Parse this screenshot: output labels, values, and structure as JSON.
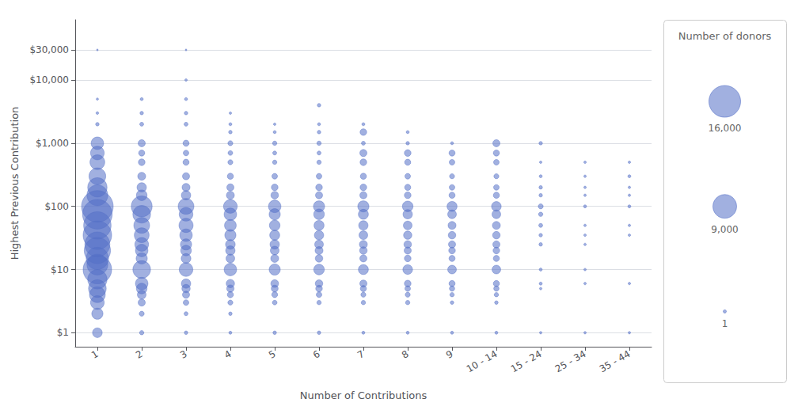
{
  "chart_data": {
    "type": "bubble",
    "xlabel": "Number of Contributions",
    "ylabel": "Highest Previous Contribution",
    "categories": [
      "1",
      "2",
      "3",
      "4",
      "5",
      "6",
      "7",
      "8",
      "9",
      "10 - 14",
      "15 - 24",
      "25 - 34",
      "35 - 44"
    ],
    "log": "y",
    "ylim": [
      0.6,
      90000
    ],
    "yticks": [
      {
        "value": 1,
        "label": "$1"
      },
      {
        "value": 10,
        "label": "$10"
      },
      {
        "value": 100,
        "label": "$100"
      },
      {
        "value": 1000,
        "label": "$1,000"
      },
      {
        "value": 10000,
        "label": "$10,000"
      },
      {
        "value": 30000,
        "label": "$30,000"
      }
    ],
    "grid": "y",
    "size_legend_title": "Number of donors",
    "size_legend": [
      {
        "value": 16000,
        "label": "16,000"
      },
      {
        "value": 9000,
        "label": "9,000"
      },
      {
        "value": 1,
        "label": "1"
      }
    ],
    "points": [
      {
        "x": "1",
        "y": 30000,
        "size": 50
      },
      {
        "x": "3",
        "y": 30000,
        "size": 50
      },
      {
        "x": "1",
        "y": 5000,
        "size": 80
      },
      {
        "x": "1",
        "y": 3000,
        "size": 120
      },
      {
        "x": "1",
        "y": 2000,
        "size": 200
      },
      {
        "x": "1",
        "y": 1000,
        "size": 2500
      },
      {
        "x": "1",
        "y": 700,
        "size": 3000
      },
      {
        "x": "1",
        "y": 500,
        "size": 3500
      },
      {
        "x": "1",
        "y": 300,
        "size": 4500
      },
      {
        "x": "1",
        "y": 200,
        "size": 6000
      },
      {
        "x": "1",
        "y": 150,
        "size": 7000
      },
      {
        "x": "1",
        "y": 100,
        "size": 16000
      },
      {
        "x": "1",
        "y": 75,
        "size": 14000
      },
      {
        "x": "1",
        "y": 50,
        "size": 12000
      },
      {
        "x": "1",
        "y": 35,
        "size": 13000
      },
      {
        "x": "1",
        "y": 25,
        "size": 10000
      },
      {
        "x": "1",
        "y": 20,
        "size": 11000
      },
      {
        "x": "1",
        "y": 15,
        "size": 8000
      },
      {
        "x": "1",
        "y": 12,
        "size": 7000
      },
      {
        "x": "1",
        "y": 10,
        "size": 13000
      },
      {
        "x": "1",
        "y": 7,
        "size": 6000
      },
      {
        "x": "1",
        "y": 5,
        "size": 5000
      },
      {
        "x": "1",
        "y": 4,
        "size": 4000
      },
      {
        "x": "1",
        "y": 3,
        "size": 3000
      },
      {
        "x": "1",
        "y": 2,
        "size": 2000
      },
      {
        "x": "1",
        "y": 1,
        "size": 1500
      },
      {
        "x": "2",
        "y": 5000,
        "size": 150
      },
      {
        "x": "2",
        "y": 3000,
        "size": 200
      },
      {
        "x": "2",
        "y": 2000,
        "size": 250
      },
      {
        "x": "2",
        "y": 1000,
        "size": 800
      },
      {
        "x": "2",
        "y": 700,
        "size": 600
      },
      {
        "x": "2",
        "y": 500,
        "size": 700
      },
      {
        "x": "2",
        "y": 300,
        "size": 1000
      },
      {
        "x": "2",
        "y": 200,
        "size": 1400
      },
      {
        "x": "2",
        "y": 150,
        "size": 1800
      },
      {
        "x": "2",
        "y": 100,
        "size": 7000
      },
      {
        "x": "2",
        "y": 75,
        "size": 5000
      },
      {
        "x": "2",
        "y": 50,
        "size": 4000
      },
      {
        "x": "2",
        "y": 35,
        "size": 3500
      },
      {
        "x": "2",
        "y": 25,
        "size": 3000
      },
      {
        "x": "2",
        "y": 20,
        "size": 2500
      },
      {
        "x": "2",
        "y": 15,
        "size": 2000
      },
      {
        "x": "2",
        "y": 10,
        "size": 5000
      },
      {
        "x": "2",
        "y": 6,
        "size": 2500
      },
      {
        "x": "2",
        "y": 5,
        "size": 1800
      },
      {
        "x": "2",
        "y": 4,
        "size": 1200
      },
      {
        "x": "2",
        "y": 3,
        "size": 800
      },
      {
        "x": "2",
        "y": 2,
        "size": 400
      },
      {
        "x": "2",
        "y": 1,
        "size": 300
      },
      {
        "x": "3",
        "y": 10000,
        "size": 100
      },
      {
        "x": "3",
        "y": 5000,
        "size": 150
      },
      {
        "x": "3",
        "y": 3000,
        "size": 200
      },
      {
        "x": "3",
        "y": 2000,
        "size": 250
      },
      {
        "x": "3",
        "y": 1000,
        "size": 600
      },
      {
        "x": "3",
        "y": 700,
        "size": 500
      },
      {
        "x": "3",
        "y": 500,
        "size": 600
      },
      {
        "x": "3",
        "y": 300,
        "size": 800
      },
      {
        "x": "3",
        "y": 200,
        "size": 1000
      },
      {
        "x": "3",
        "y": 150,
        "size": 1400
      },
      {
        "x": "3",
        "y": 100,
        "size": 4000
      },
      {
        "x": "3",
        "y": 75,
        "size": 3000
      },
      {
        "x": "3",
        "y": 50,
        "size": 3200
      },
      {
        "x": "3",
        "y": 35,
        "size": 2500
      },
      {
        "x": "3",
        "y": 25,
        "size": 2000
      },
      {
        "x": "3",
        "y": 20,
        "size": 1800
      },
      {
        "x": "3",
        "y": 15,
        "size": 1500
      },
      {
        "x": "3",
        "y": 10,
        "size": 3000
      },
      {
        "x": "3",
        "y": 6,
        "size": 1400
      },
      {
        "x": "3",
        "y": 5,
        "size": 1100
      },
      {
        "x": "3",
        "y": 4,
        "size": 800
      },
      {
        "x": "3",
        "y": 3,
        "size": 500
      },
      {
        "x": "3",
        "y": 2,
        "size": 250
      },
      {
        "x": "3",
        "y": 1,
        "size": 200
      },
      {
        "x": "4",
        "y": 3000,
        "size": 100
      },
      {
        "x": "4",
        "y": 2000,
        "size": 150
      },
      {
        "x": "4",
        "y": 1500,
        "size": 200
      },
      {
        "x": "4",
        "y": 1000,
        "size": 400
      },
      {
        "x": "4",
        "y": 700,
        "size": 350
      },
      {
        "x": "4",
        "y": 500,
        "size": 400
      },
      {
        "x": "4",
        "y": 300,
        "size": 600
      },
      {
        "x": "4",
        "y": 200,
        "size": 800
      },
      {
        "x": "4",
        "y": 150,
        "size": 1000
      },
      {
        "x": "4",
        "y": 100,
        "size": 3000
      },
      {
        "x": "4",
        "y": 75,
        "size": 2500
      },
      {
        "x": "4",
        "y": 50,
        "size": 2200
      },
      {
        "x": "4",
        "y": 35,
        "size": 2000
      },
      {
        "x": "4",
        "y": 25,
        "size": 1500
      },
      {
        "x": "4",
        "y": 20,
        "size": 1400
      },
      {
        "x": "4",
        "y": 15,
        "size": 1200
      },
      {
        "x": "4",
        "y": 10,
        "size": 2500
      },
      {
        "x": "4",
        "y": 6,
        "size": 1100
      },
      {
        "x": "4",
        "y": 5,
        "size": 850
      },
      {
        "x": "4",
        "y": 4,
        "size": 600
      },
      {
        "x": "4",
        "y": 3,
        "size": 400
      },
      {
        "x": "4",
        "y": 2,
        "size": 200
      },
      {
        "x": "4",
        "y": 1,
        "size": 150
      },
      {
        "x": "5",
        "y": 2000,
        "size": 100
      },
      {
        "x": "5",
        "y": 1500,
        "size": 150
      },
      {
        "x": "5",
        "y": 1000,
        "size": 300
      },
      {
        "x": "5",
        "y": 700,
        "size": 250
      },
      {
        "x": "5",
        "y": 500,
        "size": 300
      },
      {
        "x": "5",
        "y": 300,
        "size": 500
      },
      {
        "x": "5",
        "y": 200,
        "size": 700
      },
      {
        "x": "5",
        "y": 150,
        "size": 900
      },
      {
        "x": "5",
        "y": 100,
        "size": 2500
      },
      {
        "x": "5",
        "y": 75,
        "size": 2000
      },
      {
        "x": "5",
        "y": 50,
        "size": 1800
      },
      {
        "x": "5",
        "y": 35,
        "size": 1600
      },
      {
        "x": "5",
        "y": 25,
        "size": 1400
      },
      {
        "x": "5",
        "y": 20,
        "size": 1200
      },
      {
        "x": "5",
        "y": 15,
        "size": 1000
      },
      {
        "x": "5",
        "y": 10,
        "size": 2000
      },
      {
        "x": "5",
        "y": 6,
        "size": 950
      },
      {
        "x": "5",
        "y": 5,
        "size": 750
      },
      {
        "x": "5",
        "y": 4,
        "size": 550
      },
      {
        "x": "5",
        "y": 3,
        "size": 350
      },
      {
        "x": "5",
        "y": 1,
        "size": 200
      },
      {
        "x": "6",
        "y": 4000,
        "size": 200
      },
      {
        "x": "6",
        "y": 2000,
        "size": 150
      },
      {
        "x": "6",
        "y": 1500,
        "size": 200
      },
      {
        "x": "6",
        "y": 1000,
        "size": 300
      },
      {
        "x": "6",
        "y": 700,
        "size": 250
      },
      {
        "x": "6",
        "y": 500,
        "size": 300
      },
      {
        "x": "6",
        "y": 300,
        "size": 500
      },
      {
        "x": "6",
        "y": 200,
        "size": 700
      },
      {
        "x": "6",
        "y": 150,
        "size": 800
      },
      {
        "x": "6",
        "y": 100,
        "size": 2000
      },
      {
        "x": "6",
        "y": 75,
        "size": 1800
      },
      {
        "x": "6",
        "y": 50,
        "size": 1600
      },
      {
        "x": "6",
        "y": 35,
        "size": 1400
      },
      {
        "x": "6",
        "y": 25,
        "size": 1200
      },
      {
        "x": "6",
        "y": 20,
        "size": 1000
      },
      {
        "x": "6",
        "y": 15,
        "size": 900
      },
      {
        "x": "6",
        "y": 10,
        "size": 1800
      },
      {
        "x": "6",
        "y": 6,
        "size": 900
      },
      {
        "x": "6",
        "y": 5,
        "size": 700
      },
      {
        "x": "6",
        "y": 4,
        "size": 500
      },
      {
        "x": "6",
        "y": 3,
        "size": 300
      },
      {
        "x": "6",
        "y": 1,
        "size": 200
      },
      {
        "x": "7",
        "y": 2000,
        "size": 150
      },
      {
        "x": "7",
        "y": 1500,
        "size": 700
      },
      {
        "x": "7",
        "y": 1000,
        "size": 250
      },
      {
        "x": "7",
        "y": 700,
        "size": 800
      },
      {
        "x": "7",
        "y": 500,
        "size": 700
      },
      {
        "x": "7",
        "y": 300,
        "size": 600
      },
      {
        "x": "7",
        "y": 200,
        "size": 700
      },
      {
        "x": "7",
        "y": 150,
        "size": 800
      },
      {
        "x": "7",
        "y": 100,
        "size": 2000
      },
      {
        "x": "7",
        "y": 75,
        "size": 1600
      },
      {
        "x": "7",
        "y": 50,
        "size": 1400
      },
      {
        "x": "7",
        "y": 35,
        "size": 1200
      },
      {
        "x": "7",
        "y": 25,
        "size": 1000
      },
      {
        "x": "7",
        "y": 20,
        "size": 900
      },
      {
        "x": "7",
        "y": 15,
        "size": 800
      },
      {
        "x": "7",
        "y": 10,
        "size": 1600
      },
      {
        "x": "7",
        "y": 6,
        "size": 800
      },
      {
        "x": "7",
        "y": 5,
        "size": 600
      },
      {
        "x": "7",
        "y": 4,
        "size": 400
      },
      {
        "x": "7",
        "y": 3,
        "size": 300
      },
      {
        "x": "7",
        "y": 1,
        "size": 150
      },
      {
        "x": "8",
        "y": 1500,
        "size": 150
      },
      {
        "x": "8",
        "y": 1000,
        "size": 200
      },
      {
        "x": "8",
        "y": 700,
        "size": 700
      },
      {
        "x": "8",
        "y": 500,
        "size": 600
      },
      {
        "x": "8",
        "y": 300,
        "size": 500
      },
      {
        "x": "8",
        "y": 200,
        "size": 600
      },
      {
        "x": "8",
        "y": 150,
        "size": 700
      },
      {
        "x": "8",
        "y": 100,
        "size": 1800
      },
      {
        "x": "8",
        "y": 75,
        "size": 1400
      },
      {
        "x": "8",
        "y": 50,
        "size": 1200
      },
      {
        "x": "8",
        "y": 35,
        "size": 1100
      },
      {
        "x": "8",
        "y": 25,
        "size": 900
      },
      {
        "x": "8",
        "y": 20,
        "size": 800
      },
      {
        "x": "8",
        "y": 15,
        "size": 700
      },
      {
        "x": "8",
        "y": 10,
        "size": 1500
      },
      {
        "x": "8",
        "y": 6,
        "size": 700
      },
      {
        "x": "8",
        "y": 5,
        "size": 500
      },
      {
        "x": "8",
        "y": 4,
        "size": 400
      },
      {
        "x": "8",
        "y": 3,
        "size": 300
      },
      {
        "x": "8",
        "y": 1,
        "size": 150
      },
      {
        "x": "9",
        "y": 1000,
        "size": 150
      },
      {
        "x": "9",
        "y": 700,
        "size": 600
      },
      {
        "x": "9",
        "y": 500,
        "size": 500
      },
      {
        "x": "9",
        "y": 300,
        "size": 400
      },
      {
        "x": "9",
        "y": 200,
        "size": 500
      },
      {
        "x": "9",
        "y": 150,
        "size": 600
      },
      {
        "x": "9",
        "y": 100,
        "size": 1600
      },
      {
        "x": "9",
        "y": 75,
        "size": 1200
      },
      {
        "x": "9",
        "y": 50,
        "size": 1000
      },
      {
        "x": "9",
        "y": 35,
        "size": 900
      },
      {
        "x": "9",
        "y": 25,
        "size": 800
      },
      {
        "x": "9",
        "y": 20,
        "size": 700
      },
      {
        "x": "9",
        "y": 15,
        "size": 600
      },
      {
        "x": "9",
        "y": 10,
        "size": 1200
      },
      {
        "x": "9",
        "y": 6,
        "size": 600
      },
      {
        "x": "9",
        "y": 5,
        "size": 450
      },
      {
        "x": "9",
        "y": 4,
        "size": 300
      },
      {
        "x": "9",
        "y": 3,
        "size": 200
      },
      {
        "x": "9",
        "y": 1,
        "size": 150
      },
      {
        "x": "10 - 14",
        "y": 1000,
        "size": 800
      },
      {
        "x": "10 - 14",
        "y": 700,
        "size": 600
      },
      {
        "x": "10 - 14",
        "y": 500,
        "size": 500
      },
      {
        "x": "10 - 14",
        "y": 300,
        "size": 400
      },
      {
        "x": "10 - 14",
        "y": 200,
        "size": 500
      },
      {
        "x": "10 - 14",
        "y": 150,
        "size": 600
      },
      {
        "x": "10 - 14",
        "y": 100,
        "size": 1500
      },
      {
        "x": "10 - 14",
        "y": 75,
        "size": 1200
      },
      {
        "x": "10 - 14",
        "y": 50,
        "size": 1000
      },
      {
        "x": "10 - 14",
        "y": 35,
        "size": 900
      },
      {
        "x": "10 - 14",
        "y": 25,
        "size": 800
      },
      {
        "x": "10 - 14",
        "y": 20,
        "size": 700
      },
      {
        "x": "10 - 14",
        "y": 15,
        "size": 600
      },
      {
        "x": "10 - 14",
        "y": 10,
        "size": 1200
      },
      {
        "x": "10 - 14",
        "y": 6,
        "size": 600
      },
      {
        "x": "10 - 14",
        "y": 5,
        "size": 450
      },
      {
        "x": "10 - 14",
        "y": 4,
        "size": 300
      },
      {
        "x": "10 - 14",
        "y": 3,
        "size": 200
      },
      {
        "x": "10 - 14",
        "y": 1,
        "size": 150
      },
      {
        "x": "15 - 24",
        "y": 1000,
        "size": 200
      },
      {
        "x": "15 - 24",
        "y": 500,
        "size": 100
      },
      {
        "x": "15 - 24",
        "y": 300,
        "size": 150
      },
      {
        "x": "15 - 24",
        "y": 200,
        "size": 200
      },
      {
        "x": "15 - 24",
        "y": 150,
        "size": 200
      },
      {
        "x": "15 - 24",
        "y": 100,
        "size": 400
      },
      {
        "x": "15 - 24",
        "y": 75,
        "size": 300
      },
      {
        "x": "15 - 24",
        "y": 50,
        "size": 250
      },
      {
        "x": "15 - 24",
        "y": 35,
        "size": 200
      },
      {
        "x": "15 - 24",
        "y": 25,
        "size": 200
      },
      {
        "x": "15 - 24",
        "y": 10,
        "size": 150
      },
      {
        "x": "15 - 24",
        "y": 6,
        "size": 150
      },
      {
        "x": "15 - 24",
        "y": 5,
        "size": 100
      },
      {
        "x": "15 - 24",
        "y": 1,
        "size": 100
      },
      {
        "x": "25 - 34",
        "y": 500,
        "size": 100
      },
      {
        "x": "25 - 34",
        "y": 300,
        "size": 100
      },
      {
        "x": "25 - 34",
        "y": 200,
        "size": 100
      },
      {
        "x": "25 - 34",
        "y": 150,
        "size": 100
      },
      {
        "x": "25 - 34",
        "y": 100,
        "size": 150
      },
      {
        "x": "25 - 34",
        "y": 50,
        "size": 100
      },
      {
        "x": "25 - 34",
        "y": 35,
        "size": 100
      },
      {
        "x": "25 - 34",
        "y": 25,
        "size": 100
      },
      {
        "x": "25 - 34",
        "y": 10,
        "size": 100
      },
      {
        "x": "25 - 34",
        "y": 6,
        "size": 100
      },
      {
        "x": "25 - 34",
        "y": 1,
        "size": 100
      },
      {
        "x": "35 - 44",
        "y": 500,
        "size": 100
      },
      {
        "x": "35 - 44",
        "y": 300,
        "size": 150
      },
      {
        "x": "35 - 44",
        "y": 200,
        "size": 100
      },
      {
        "x": "35 - 44",
        "y": 150,
        "size": 100
      },
      {
        "x": "35 - 44",
        "y": 100,
        "size": 150
      },
      {
        "x": "35 - 44",
        "y": 50,
        "size": 100
      },
      {
        "x": "35 - 44",
        "y": 35,
        "size": 100
      },
      {
        "x": "35 - 44",
        "y": 6,
        "size": 100
      },
      {
        "x": "35 - 44",
        "y": 1,
        "size": 100
      }
    ]
  }
}
